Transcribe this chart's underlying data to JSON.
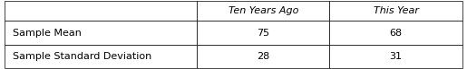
{
  "col_headers": [
    "",
    "Ten Years Ago",
    "This Year"
  ],
  "row_labels": [
    "Sample Mean",
    "Sample Standard Deviation"
  ],
  "values": [
    [
      "75",
      "68"
    ],
    [
      "28",
      "31"
    ]
  ],
  "background_color": "#ffffff",
  "border_color": "#000000",
  "font_size": 8,
  "figsize": [
    5.15,
    0.77
  ],
  "dpi": 100
}
